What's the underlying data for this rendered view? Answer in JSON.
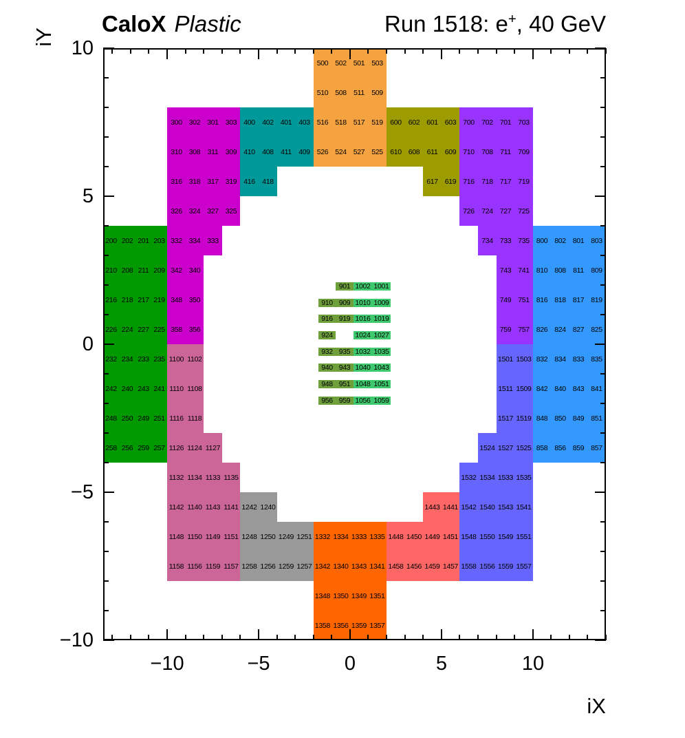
{
  "header": {
    "left_title_main": "CaloX",
    "left_title_sub": "Plastic",
    "run_prefix": "Run 1518: e",
    "run_sup": "+",
    "run_suffix": ", 40 GeV"
  },
  "chart_data": {
    "type": "heatmap",
    "title": "CaloX Plastic",
    "subtitle": "Run 1518: e+, 40 GeV",
    "xlabel": "iX",
    "ylabel": "iY",
    "xlim": [
      -13.5,
      14
    ],
    "ylim": [
      -10,
      10
    ],
    "xticks": [
      -10,
      -5,
      0,
      5,
      10
    ],
    "yticks": [
      -10,
      -5,
      0,
      5,
      10
    ],
    "grid": false,
    "blocks": [
      {
        "name": "region-200",
        "color": "#009900",
        "rows": [
          {
            "y": 3,
            "x": -13.5,
            "w": 0.875,
            "labels": [
              "200",
              "202",
              "201",
              "203"
            ]
          },
          {
            "y": 2,
            "x": -13.5,
            "w": 0.875,
            "labels": [
              "210",
              "208",
              "211",
              "209"
            ]
          },
          {
            "y": 1,
            "x": -13.5,
            "w": 0.875,
            "labels": [
              "216",
              "218",
              "217",
              "219"
            ]
          },
          {
            "y": 0,
            "x": -13.5,
            "w": 0.875,
            "labels": [
              "226",
              "224",
              "227",
              "225"
            ]
          },
          {
            "y": -1,
            "x": -13.5,
            "w": 0.875,
            "labels": [
              "232",
              "234",
              "233",
              "235"
            ]
          },
          {
            "y": -2,
            "x": -13.5,
            "w": 0.875,
            "labels": [
              "242",
              "240",
              "243",
              "241"
            ]
          },
          {
            "y": -3,
            "x": -13.5,
            "w": 0.875,
            "labels": [
              "248",
              "250",
              "249",
              "251"
            ]
          },
          {
            "y": -4,
            "x": -13.5,
            "w": 0.875,
            "labels": [
              "258",
              "256",
              "259",
              "257"
            ]
          }
        ]
      },
      {
        "name": "region-300",
        "color": "#CC00CC",
        "rows": [
          {
            "y": 7,
            "x": -10,
            "labels": [
              "300",
              "302",
              "301",
              "303"
            ]
          },
          {
            "y": 6,
            "x": -10,
            "labels": [
              "310",
              "308",
              "311",
              "309"
            ]
          },
          {
            "y": 5,
            "x": -10,
            "labels": [
              "316",
              "318",
              "317",
              "319"
            ]
          },
          {
            "y": 4,
            "x": -10,
            "labels": [
              "326",
              "324",
              "327",
              "325"
            ]
          },
          {
            "y": 3,
            "x": -10,
            "labels": [
              "332",
              "334",
              "333"
            ]
          },
          {
            "y": 2,
            "x": -10,
            "labels": [
              "342",
              "340"
            ]
          },
          {
            "y": 1,
            "x": -10,
            "labels": [
              "348",
              "350"
            ]
          },
          {
            "y": 0,
            "x": -10,
            "labels": [
              "358",
              "356"
            ]
          }
        ]
      },
      {
        "name": "region-400",
        "color": "#009999",
        "rows": [
          {
            "y": 7,
            "x": -6,
            "labels": [
              "400",
              "402",
              "401",
              "403"
            ]
          },
          {
            "y": 6,
            "x": -6,
            "labels": [
              "410",
              "408",
              "411",
              "409"
            ]
          },
          {
            "y": 5,
            "x": -6,
            "labels": [
              "416",
              "418"
            ]
          }
        ]
      },
      {
        "name": "region-500",
        "color": "#F5A341",
        "rows": [
          {
            "y": 9,
            "x": -2,
            "labels": [
              "500",
              "502",
              "501",
              "503"
            ]
          },
          {
            "y": 8,
            "x": -2,
            "labels": [
              "510",
              "508",
              "511",
              "509"
            ]
          },
          {
            "y": 7,
            "x": -2,
            "labels": [
              "516",
              "518",
              "517",
              "519"
            ]
          },
          {
            "y": 6,
            "x": -2,
            "labels": [
              "526",
              "524",
              "527",
              "525"
            ]
          }
        ]
      },
      {
        "name": "region-600",
        "color": "#9C9C00",
        "rows": [
          {
            "y": 7,
            "x": 2,
            "labels": [
              "600",
              "602",
              "601",
              "603"
            ]
          },
          {
            "y": 6,
            "x": 2,
            "labels": [
              "610",
              "608",
              "611",
              "609"
            ]
          },
          {
            "y": 5,
            "x": 4,
            "labels": [
              "617",
              "619"
            ]
          }
        ]
      },
      {
        "name": "region-700",
        "color": "#9933FF",
        "rows": [
          {
            "y": 7,
            "x": 6,
            "labels": [
              "700",
              "702",
              "701",
              "703"
            ]
          },
          {
            "y": 6,
            "x": 6,
            "labels": [
              "710",
              "708",
              "711",
              "709"
            ]
          },
          {
            "y": 5,
            "x": 6,
            "labels": [
              "716",
              "718",
              "717",
              "719"
            ]
          },
          {
            "y": 4,
            "x": 6,
            "labels": [
              "726",
              "724",
              "727",
              "725"
            ]
          },
          {
            "y": 3,
            "x": 7,
            "labels": [
              "734",
              "733",
              "735"
            ]
          },
          {
            "y": 2,
            "x": 8,
            "labels": [
              "743",
              "741"
            ]
          },
          {
            "y": 1,
            "x": 8,
            "labels": [
              "749",
              "751"
            ]
          },
          {
            "y": 0,
            "x": 8,
            "labels": [
              "759",
              "757"
            ]
          }
        ]
      },
      {
        "name": "region-800",
        "color": "#3399FF",
        "rows": [
          {
            "y": 3,
            "x": 10,
            "labels": [
              "800",
              "802",
              "801",
              "803"
            ]
          },
          {
            "y": 2,
            "x": 10,
            "labels": [
              "810",
              "808",
              "811",
              "809"
            ]
          },
          {
            "y": 1,
            "x": 10,
            "labels": [
              "816",
              "818",
              "817",
              "819"
            ]
          },
          {
            "y": 0,
            "x": 10,
            "labels": [
              "826",
              "824",
              "827",
              "825"
            ]
          },
          {
            "y": -1,
            "x": 10,
            "labels": [
              "832",
              "834",
              "833",
              "835"
            ]
          },
          {
            "y": -2,
            "x": 10,
            "labels": [
              "842",
              "840",
              "843",
              "841"
            ]
          },
          {
            "y": -3,
            "x": 10,
            "labels": [
              "848",
              "850",
              "849",
              "851"
            ]
          },
          {
            "y": -4,
            "x": 10,
            "labels": [
              "858",
              "856",
              "859",
              "857"
            ]
          }
        ]
      },
      {
        "name": "region-1100",
        "color": "#CC6699",
        "rows": [
          {
            "y": -1,
            "x": -10,
            "labels": [
              "1100",
              "1102"
            ]
          },
          {
            "y": -2,
            "x": -10,
            "labels": [
              "1110",
              "1108"
            ]
          },
          {
            "y": -3,
            "x": -10,
            "labels": [
              "1116",
              "1118"
            ]
          },
          {
            "y": -4,
            "x": -10,
            "labels": [
              "1126",
              "1124",
              "1127"
            ]
          },
          {
            "y": -5,
            "x": -10,
            "labels": [
              "1132",
              "1134",
              "1133",
              "1135"
            ]
          },
          {
            "y": -6,
            "x": -10,
            "labels": [
              "1142",
              "1140",
              "1143",
              "1141"
            ]
          },
          {
            "y": -7,
            "x": -10,
            "labels": [
              "1148",
              "1150",
              "1149",
              "1151"
            ]
          },
          {
            "y": -8,
            "x": -10,
            "labels": [
              "1158",
              "1156",
              "1159",
              "1157"
            ]
          }
        ]
      },
      {
        "name": "region-1200",
        "color": "#999999",
        "rows": [
          {
            "y": -6,
            "x": -6,
            "labels": [
              "1242",
              "1240"
            ]
          },
          {
            "y": -7,
            "x": -6,
            "labels": [
              "1248",
              "1250",
              "1249",
              "1251"
            ]
          },
          {
            "y": -8,
            "x": -6,
            "labels": [
              "1258",
              "1256",
              "1259",
              "1257"
            ]
          }
        ]
      },
      {
        "name": "region-1300",
        "color": "#FF6600",
        "rows": [
          {
            "y": -7,
            "x": -2,
            "labels": [
              "1332",
              "1334",
              "1333",
              "1335"
            ]
          },
          {
            "y": -8,
            "x": -2,
            "labels": [
              "1342",
              "1340",
              "1343",
              "1341"
            ]
          },
          {
            "y": -9,
            "x": -2,
            "labels": [
              "1348",
              "1350",
              "1349",
              "1351"
            ]
          },
          {
            "y": -10,
            "x": -2,
            "labels": [
              "1358",
              "1356",
              "1359",
              "1357"
            ]
          }
        ]
      },
      {
        "name": "region-1400",
        "color": "#FF6666",
        "rows": [
          {
            "y": -6,
            "x": 4,
            "labels": [
              "1443",
              "1441"
            ]
          },
          {
            "y": -7,
            "x": 2,
            "labels": [
              "1448",
              "1450",
              "1449",
              "1451"
            ]
          },
          {
            "y": -8,
            "x": 2,
            "labels": [
              "1458",
              "1456",
              "1459",
              "1457"
            ]
          }
        ]
      },
      {
        "name": "region-1500",
        "color": "#6666FF",
        "rows": [
          {
            "y": -1,
            "x": 8,
            "labels": [
              "1501",
              "1503"
            ]
          },
          {
            "y": -2,
            "x": 8,
            "labels": [
              "1511",
              "1509"
            ]
          },
          {
            "y": -3,
            "x": 8,
            "labels": [
              "1517",
              "1519"
            ]
          },
          {
            "y": -4,
            "x": 7,
            "labels": [
              "1524",
              "1527",
              "1525"
            ]
          },
          {
            "y": -5,
            "x": 6,
            "labels": [
              "1532",
              "1534",
              "1533",
              "1535"
            ]
          },
          {
            "y": -6,
            "x": 6,
            "labels": [
              "1542",
              "1540",
              "1543",
              "1541"
            ]
          },
          {
            "y": -7,
            "x": 6,
            "labels": [
              "1548",
              "1550",
              "1549",
              "1551"
            ]
          },
          {
            "y": -8,
            "x": 6,
            "labels": [
              "1558",
              "1556",
              "1559",
              "1557"
            ]
          }
        ]
      }
    ],
    "center_colors": {
      "olive": "#6FA03C",
      "green": "#3FC96E"
    },
    "center_cols": [
      [
        -1.72,
        -0.77
      ],
      [
        -0.77,
        0.18
      ],
      [
        0.18,
        1.2
      ],
      [
        1.2,
        2.22
      ]
    ],
    "center_half_height": 0.14,
    "center_rows": [
      {
        "y": 1.95,
        "cells": [
          {
            "col": 1,
            "label": "901",
            "group": "olive"
          },
          {
            "col": 2,
            "label": "1002",
            "group": "green"
          },
          {
            "col": 3,
            "label": "1001",
            "group": "green"
          }
        ]
      },
      {
        "y": 1.4,
        "cells": [
          {
            "col": 0,
            "label": "910",
            "group": "olive"
          },
          {
            "col": 1,
            "label": "909",
            "group": "olive"
          },
          {
            "col": 2,
            "label": "1010",
            "group": "green"
          },
          {
            "col": 3,
            "label": "1009",
            "group": "green"
          }
        ]
      },
      {
        "y": 0.85,
        "cells": [
          {
            "col": 0,
            "label": "916",
            "group": "olive"
          },
          {
            "col": 1,
            "label": "919",
            "group": "olive"
          },
          {
            "col": 2,
            "label": "1016",
            "group": "green"
          },
          {
            "col": 3,
            "label": "1019",
            "group": "green"
          }
        ]
      },
      {
        "y": 0.3,
        "cells": [
          {
            "col": 0,
            "label": "924",
            "group": "olive"
          },
          {
            "col": 2,
            "label": "1024",
            "group": "green"
          },
          {
            "col": 3,
            "label": "1027",
            "group": "green"
          }
        ]
      },
      {
        "y": -0.25,
        "cells": [
          {
            "col": 0,
            "label": "932",
            "group": "olive"
          },
          {
            "col": 1,
            "label": "935",
            "group": "olive"
          },
          {
            "col": 2,
            "label": "1032",
            "group": "green"
          },
          {
            "col": 3,
            "label": "1035",
            "group": "green"
          }
        ]
      },
      {
        "y": -0.8,
        "cells": [
          {
            "col": 0,
            "label": "940",
            "group": "olive"
          },
          {
            "col": 1,
            "label": "943",
            "group": "olive"
          },
          {
            "col": 2,
            "label": "1040",
            "group": "green"
          },
          {
            "col": 3,
            "label": "1043",
            "group": "green"
          }
        ]
      },
      {
        "y": -1.35,
        "cells": [
          {
            "col": 0,
            "label": "948",
            "group": "olive"
          },
          {
            "col": 1,
            "label": "951",
            "group": "olive"
          },
          {
            "col": 2,
            "label": "1048",
            "group": "green"
          },
          {
            "col": 3,
            "label": "1051",
            "group": "green"
          }
        ]
      },
      {
        "y": -1.9,
        "cells": [
          {
            "col": 0,
            "label": "956",
            "group": "olive"
          },
          {
            "col": 1,
            "label": "959",
            "group": "olive"
          },
          {
            "col": 2,
            "label": "1056",
            "group": "green"
          },
          {
            "col": 3,
            "label": "1059",
            "group": "green"
          }
        ]
      }
    ]
  }
}
